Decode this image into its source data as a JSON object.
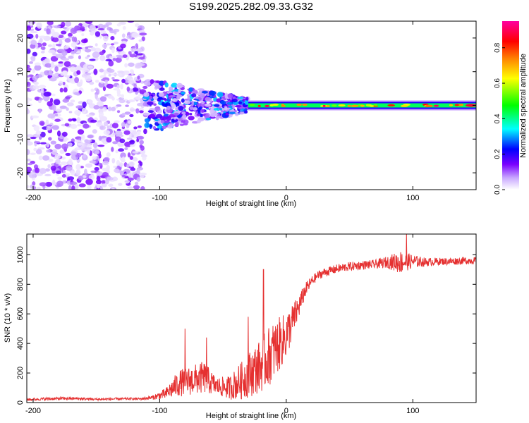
{
  "title": "S199.2025.282.09.33.G32",
  "chart_data": [
    {
      "type": "heatmap",
      "name": "spectrogram",
      "xlabel": "Height of straight line (km)",
      "ylabel": "Frequency (Hz)",
      "xlim": [
        -205,
        150
      ],
      "ylim": [
        -25,
        25
      ],
      "xticks": [
        -200,
        -100,
        0,
        100
      ],
      "xtick_labels": [
        "-200",
        "-100",
        "0",
        "100"
      ],
      "yticks": [
        -20,
        -10,
        0,
        10,
        20
      ],
      "ytick_labels": [
        "-20",
        "-10",
        "0",
        "10",
        "20"
      ],
      "colorbar": {
        "label": "Normalized spectral amplitude",
        "range": [
          0,
          0.95
        ],
        "ticks": [
          0.0,
          0.2,
          0.4,
          0.6,
          0.8
        ],
        "tick_labels": [
          "0.0",
          "0.2",
          "0.4",
          "0.6",
          "0.8"
        ],
        "colors": [
          "#ffffff",
          "#c9a8ff",
          "#7a00ff",
          "#0000ff",
          "#00ffff",
          "#00ff00",
          "#ffff00",
          "#ff8000",
          "#ff0000",
          "#ff00a0"
        ]
      },
      "description_points": {
        "noise_region_x": [
          -205,
          -112
        ],
        "transition_region_x": [
          -112,
          -30
        ],
        "signal_line_x": [
          -30,
          150
        ],
        "signal_frequency_hz": 0,
        "max_amplitude": 0.95
      }
    },
    {
      "type": "line",
      "name": "snr",
      "xlabel": "Height of straight line (km)",
      "ylabel": "SNR (10 * v/v)",
      "xlim": [
        -205,
        150
      ],
      "ylim": [
        0,
        1140
      ],
      "xticks": [
        -200,
        -100,
        0,
        100
      ],
      "xtick_labels": [
        "-200",
        "-100",
        "0",
        "100"
      ],
      "yticks": [
        0,
        200,
        400,
        600,
        800,
        1000
      ],
      "ytick_labels": [
        "0",
        "200",
        "400",
        "600",
        "800",
        "1000"
      ],
      "color": "#e53030",
      "series": [
        {
          "name": "SNR trend",
          "x": [
            -205,
            -190,
            -170,
            -150,
            -130,
            -115,
            -105,
            -95,
            -85,
            -75,
            -65,
            -55,
            -45,
            -35,
            -28,
            -20,
            -15,
            -10,
            -5,
            0,
            5,
            10,
            15,
            20,
            25,
            30,
            40,
            50,
            60,
            70,
            80,
            90,
            100,
            110,
            120,
            130,
            140,
            150
          ],
          "values": [
            20,
            25,
            28,
            22,
            25,
            25,
            35,
            60,
            130,
            150,
            170,
            110,
            100,
            150,
            200,
            250,
            300,
            350,
            400,
            450,
            550,
            650,
            760,
            820,
            860,
            880,
            905,
            920,
            930,
            935,
            950,
            950,
            955,
            950,
            955,
            955,
            960,
            960
          ],
          "noise_amplitude": [
            8,
            10,
            10,
            8,
            8,
            8,
            15,
            40,
            90,
            100,
            110,
            60,
            80,
            130,
            160,
            180,
            200,
            200,
            180,
            160,
            120,
            80,
            50,
            35,
            30,
            30,
            30,
            30,
            30,
            30,
            40,
            80,
            45,
            30,
            25,
            25,
            25,
            25
          ]
        }
      ],
      "peaks": [
        {
          "x": -80,
          "y": 500
        },
        {
          "x": -63,
          "y": 440
        },
        {
          "x": -30,
          "y": 580
        },
        {
          "x": -18,
          "y": 900
        },
        {
          "x": 95,
          "y": 1140
        }
      ]
    }
  ]
}
